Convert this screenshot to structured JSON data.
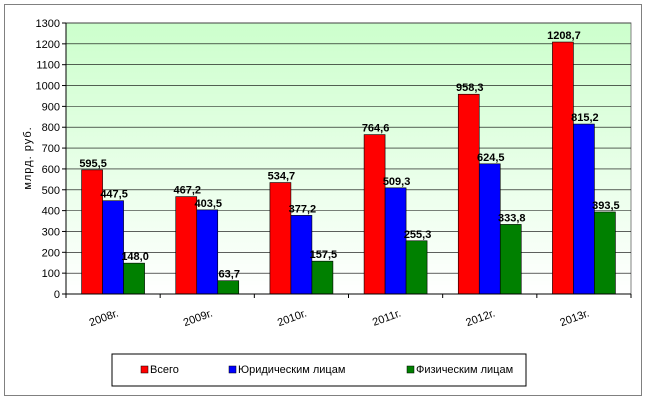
{
  "chart_data": {
    "type": "bar",
    "categories": [
      "2008г.",
      "2009г.",
      "2010г.",
      "2011г.",
      "2012г.",
      "2013г."
    ],
    "series": [
      {
        "name": "Всего",
        "color": "#ff0000",
        "values": [
          595.5,
          467.2,
          534.7,
          764.6,
          958.3,
          1208.7
        ],
        "labels": [
          "595,5",
          "467,2",
          "534,7",
          "764,6",
          "958,3",
          "1208,7"
        ]
      },
      {
        "name": "Юридическим лицам",
        "color": "#0000ff",
        "values": [
          447.5,
          403.5,
          377.2,
          509.3,
          624.5,
          815.2
        ],
        "labels": [
          "447,5",
          "403,5",
          "377,2",
          "509,3",
          "624,5",
          "815,2"
        ]
      },
      {
        "name": "Физическим лицам",
        "color": "#008000",
        "values": [
          148.0,
          63.7,
          157.5,
          255.3,
          333.8,
          393.5
        ],
        "labels": [
          "148,0",
          "63,7",
          "157,5",
          "255,3",
          "333,8",
          "393,5"
        ]
      }
    ],
    "ylabel": "млрд. руб.",
    "ylim": [
      0,
      1300
    ],
    "yticks": [
      "0",
      "100",
      "200",
      "300",
      "400",
      "500",
      "600",
      "700",
      "800",
      "900",
      "1000",
      "1100",
      "1200",
      "1300"
    ],
    "grid": true,
    "legend": "bottom",
    "plot_background": "#ccffcc"
  }
}
